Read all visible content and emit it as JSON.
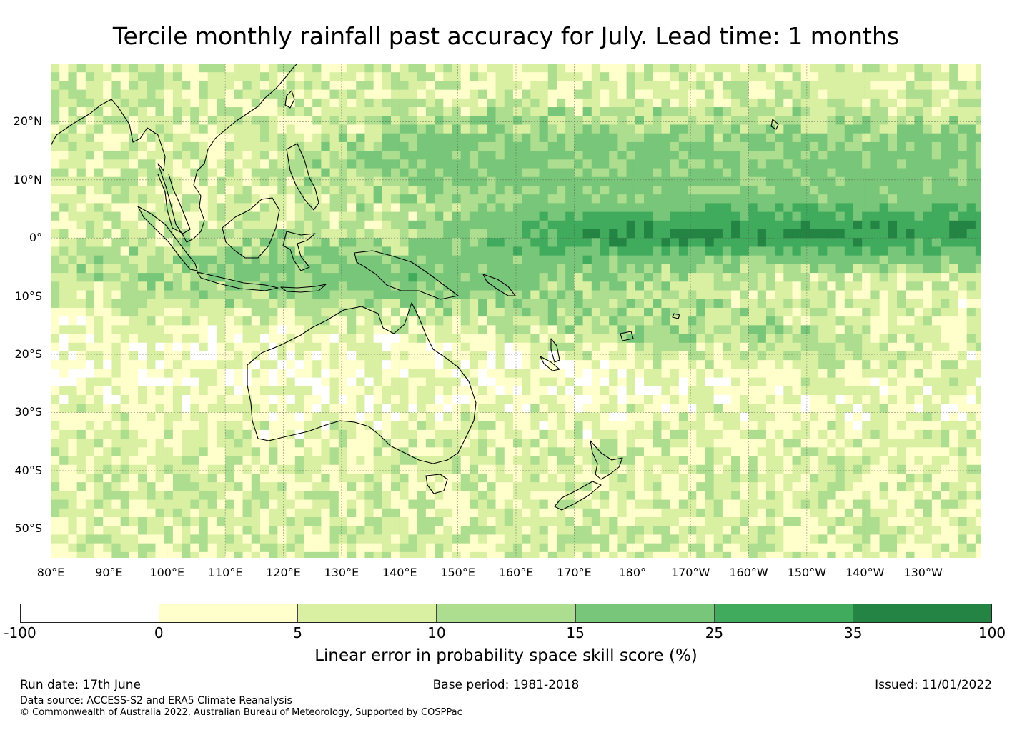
{
  "title": "Tercile monthly rainfall past accuracy for July. Lead time: 1 months",
  "map": {
    "lon_labels": [
      "80°E",
      "90°E",
      "100°E",
      "110°E",
      "120°E",
      "130°E",
      "140°E",
      "150°E",
      "160°E",
      "170°E",
      "180°",
      "170°W",
      "160°W",
      "150°W",
      "140°W",
      "130°W"
    ],
    "lat_labels": [
      "20°N",
      "10°N",
      "0°",
      "10°S",
      "20°S",
      "30°S",
      "40°S",
      "50°S"
    ],
    "lon_range": [
      80,
      240
    ],
    "lat_range": [
      -55,
      30
    ],
    "grid": "dashed graticule every 10°",
    "coastlines": [
      "Asia",
      "Maritime Continent",
      "Australia",
      "New Guinea",
      "New Zealand",
      "Pacific Islands"
    ]
  },
  "colorbar": {
    "ticks": [
      "-100",
      "0",
      "5",
      "10",
      "15",
      "25",
      "35",
      "100"
    ],
    "colors": [
      "#ffffff",
      "#ffffcc",
      "#d9f0a3",
      "#addd8e",
      "#78c679",
      "#41ab5d",
      "#238443"
    ],
    "label": "Linear error in probability space skill score (%)"
  },
  "footer": {
    "run_date": "Run date: 17th June",
    "base_period": "Base period: 1981-2018",
    "issued": "Issued: 11/01/2022",
    "data_source": "Data source: ACCESS-S2 and ERA5 Climate Reanalysis",
    "copyright": "© Commonwealth of Australia 2022, Australian Bureau of Meteorology, Supported by COSPPac"
  }
}
